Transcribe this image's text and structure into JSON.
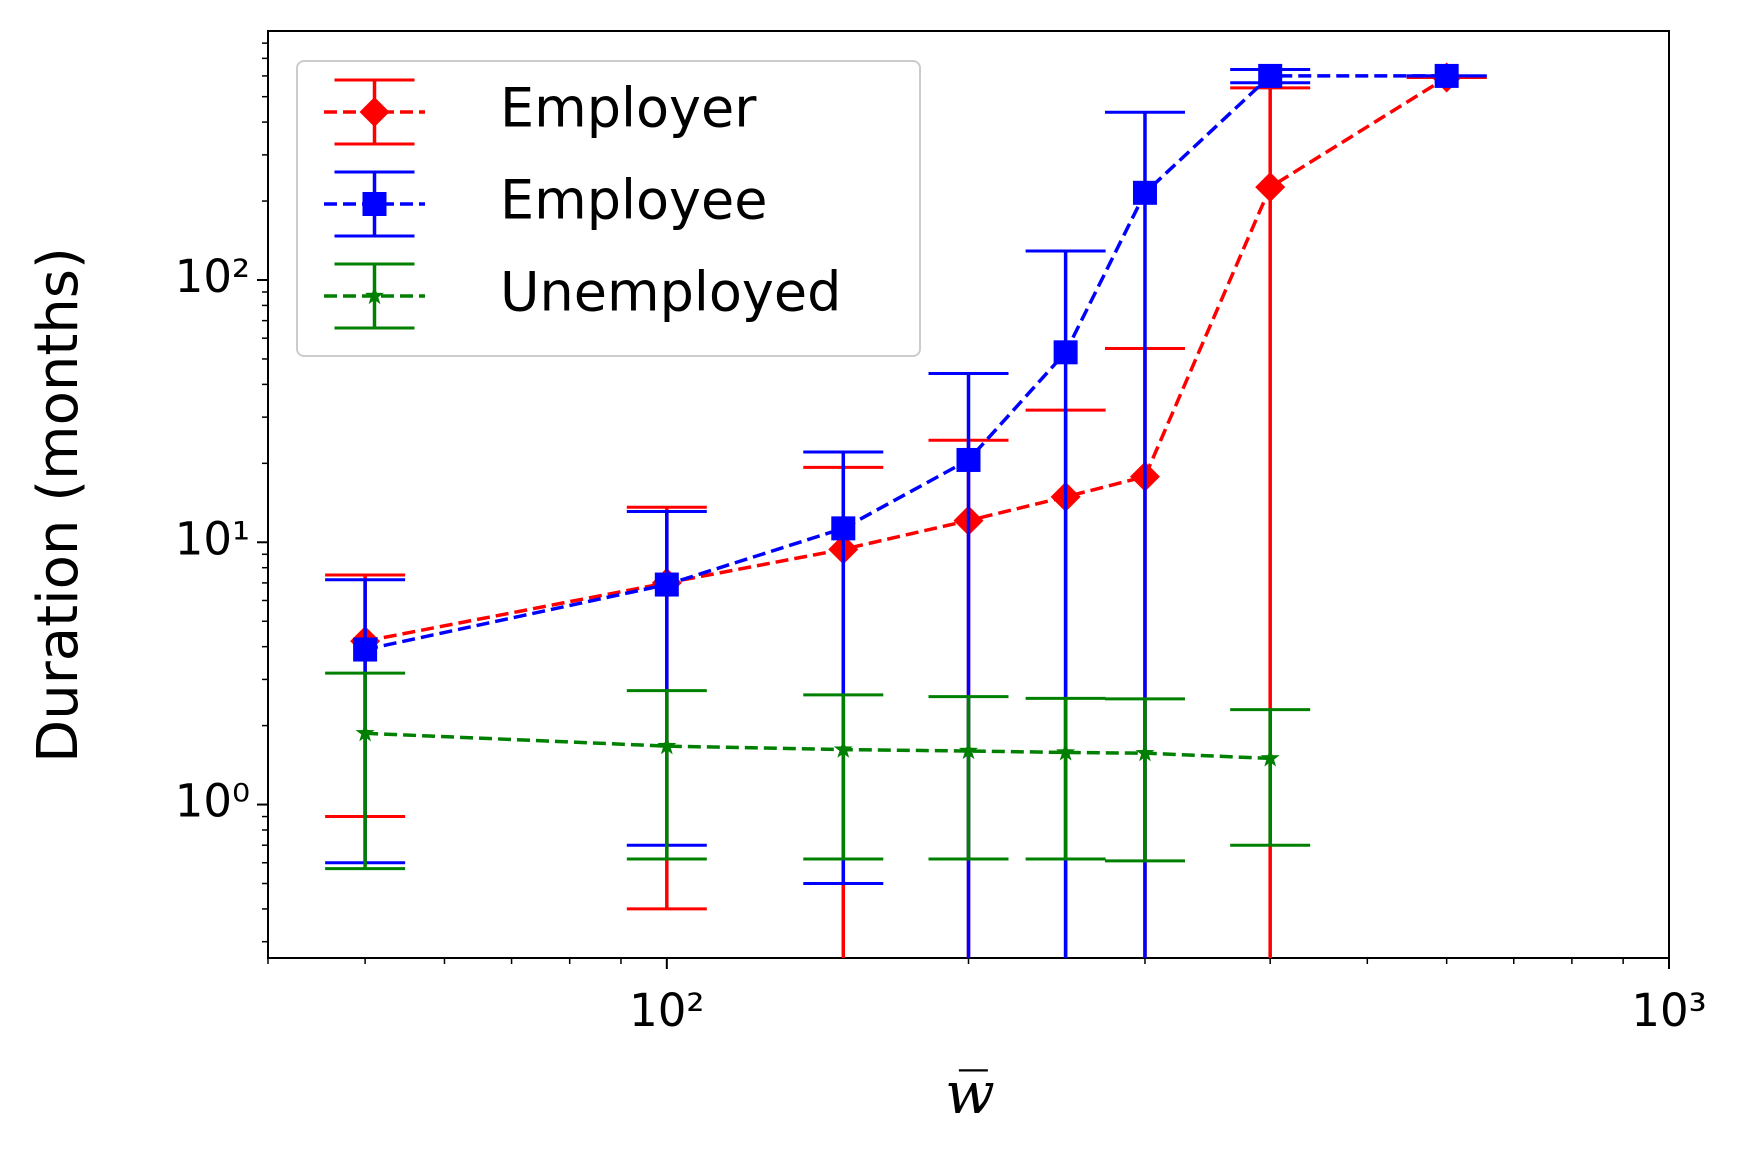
{
  "chart_data": {
    "type": "errorbar",
    "x_label": "w̅",
    "y_label": "Duration (months)",
    "x": [
      50,
      100,
      150,
      200,
      250,
      300,
      400,
      600
    ],
    "series": [
      {
        "name": "Employer",
        "color": "#ff0000",
        "marker": "diamond",
        "values": [
          4.2,
          7.0,
          9.4,
          12.1,
          14.9,
          17.8,
          226,
          592
        ],
        "errors": [
          3.3,
          6.6,
          9.9,
          12.4,
          17,
          37,
          314,
          0
        ]
      },
      {
        "name": "Employee",
        "color": "#0000ff",
        "marker": "square",
        "values": [
          3.9,
          6.9,
          11.3,
          20.6,
          53,
          215,
          600,
          600
        ],
        "errors": [
          3.3,
          6.2,
          10.8,
          23.4,
          76,
          221,
          35,
          0
        ]
      },
      {
        "name": "Unemployed",
        "color": "#008000",
        "marker": "star",
        "values": [
          1.87,
          1.67,
          1.62,
          1.6,
          1.58,
          1.57,
          1.5,
          null
        ],
        "errors": [
          1.3,
          1.05,
          1.0,
          0.98,
          0.96,
          0.96,
          0.8,
          null
        ]
      }
    ],
    "xlim": [
      40,
      1000
    ],
    "ylim": [
      0.26,
      890
    ],
    "log_x": true,
    "log_y": true,
    "xticks": [
      {
        "value": 100,
        "label": "10²"
      },
      {
        "value": 1000,
        "label": "10³"
      }
    ],
    "yticks": [
      {
        "value": 1,
        "label": "10⁰"
      },
      {
        "value": 10,
        "label": "10¹"
      },
      {
        "value": 100,
        "label": "10²"
      }
    ],
    "xminorticks": [
      40,
      50,
      60,
      70,
      80,
      90,
      200,
      300,
      400,
      500,
      600,
      700,
      800,
      900
    ],
    "yminorticks": [
      0.3,
      0.4,
      0.5,
      0.6,
      0.7,
      0.8,
      0.9,
      2,
      3,
      4,
      5,
      6,
      7,
      8,
      9,
      20,
      30,
      40,
      50,
      60,
      70,
      80,
      90,
      200,
      300,
      400,
      500,
      600,
      700,
      800
    ],
    "legend": "upper left",
    "grid": false
  }
}
